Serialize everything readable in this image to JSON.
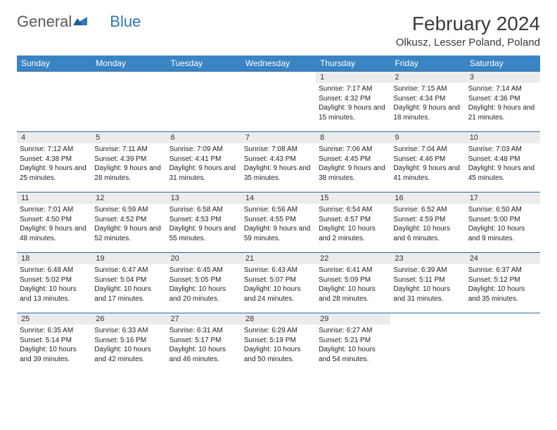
{
  "brand": {
    "part1": "General",
    "part2": "Blue"
  },
  "title": "February 2024",
  "location": "Olkusz, Lesser Poland, Poland",
  "colors": {
    "header_bg": "#3b84c4",
    "header_text": "#ffffff",
    "daynum_bg": "#ececec",
    "rule": "#2f6aa0",
    "logo_gray": "#5a5a5a",
    "logo_blue": "#2f77b8"
  },
  "day_labels": [
    "Sunday",
    "Monday",
    "Tuesday",
    "Wednesday",
    "Thursday",
    "Friday",
    "Saturday"
  ],
  "weeks": [
    [
      null,
      null,
      null,
      null,
      {
        "n": "1",
        "sr": "7:17 AM",
        "ss": "4:32 PM",
        "dl": "9 hours and 15 minutes."
      },
      {
        "n": "2",
        "sr": "7:15 AM",
        "ss": "4:34 PM",
        "dl": "9 hours and 18 minutes."
      },
      {
        "n": "3",
        "sr": "7:14 AM",
        "ss": "4:36 PM",
        "dl": "9 hours and 21 minutes."
      }
    ],
    [
      {
        "n": "4",
        "sr": "7:12 AM",
        "ss": "4:38 PM",
        "dl": "9 hours and 25 minutes."
      },
      {
        "n": "5",
        "sr": "7:11 AM",
        "ss": "4:39 PM",
        "dl": "9 hours and 28 minutes."
      },
      {
        "n": "6",
        "sr": "7:09 AM",
        "ss": "4:41 PM",
        "dl": "9 hours and 31 minutes."
      },
      {
        "n": "7",
        "sr": "7:08 AM",
        "ss": "4:43 PM",
        "dl": "9 hours and 35 minutes."
      },
      {
        "n": "8",
        "sr": "7:06 AM",
        "ss": "4:45 PM",
        "dl": "9 hours and 38 minutes."
      },
      {
        "n": "9",
        "sr": "7:04 AM",
        "ss": "4:46 PM",
        "dl": "9 hours and 41 minutes."
      },
      {
        "n": "10",
        "sr": "7:03 AM",
        "ss": "4:48 PM",
        "dl": "9 hours and 45 minutes."
      }
    ],
    [
      {
        "n": "11",
        "sr": "7:01 AM",
        "ss": "4:50 PM",
        "dl": "9 hours and 48 minutes."
      },
      {
        "n": "12",
        "sr": "6:59 AM",
        "ss": "4:52 PM",
        "dl": "9 hours and 52 minutes."
      },
      {
        "n": "13",
        "sr": "6:58 AM",
        "ss": "4:53 PM",
        "dl": "9 hours and 55 minutes."
      },
      {
        "n": "14",
        "sr": "6:56 AM",
        "ss": "4:55 PM",
        "dl": "9 hours and 59 minutes."
      },
      {
        "n": "15",
        "sr": "6:54 AM",
        "ss": "4:57 PM",
        "dl": "10 hours and 2 minutes."
      },
      {
        "n": "16",
        "sr": "6:52 AM",
        "ss": "4:59 PM",
        "dl": "10 hours and 6 minutes."
      },
      {
        "n": "17",
        "sr": "6:50 AM",
        "ss": "5:00 PM",
        "dl": "10 hours and 9 minutes."
      }
    ],
    [
      {
        "n": "18",
        "sr": "6:48 AM",
        "ss": "5:02 PM",
        "dl": "10 hours and 13 minutes."
      },
      {
        "n": "19",
        "sr": "6:47 AM",
        "ss": "5:04 PM",
        "dl": "10 hours and 17 minutes."
      },
      {
        "n": "20",
        "sr": "6:45 AM",
        "ss": "5:05 PM",
        "dl": "10 hours and 20 minutes."
      },
      {
        "n": "21",
        "sr": "6:43 AM",
        "ss": "5:07 PM",
        "dl": "10 hours and 24 minutes."
      },
      {
        "n": "22",
        "sr": "6:41 AM",
        "ss": "5:09 PM",
        "dl": "10 hours and 28 minutes."
      },
      {
        "n": "23",
        "sr": "6:39 AM",
        "ss": "5:11 PM",
        "dl": "10 hours and 31 minutes."
      },
      {
        "n": "24",
        "sr": "6:37 AM",
        "ss": "5:12 PM",
        "dl": "10 hours and 35 minutes."
      }
    ],
    [
      {
        "n": "25",
        "sr": "6:35 AM",
        "ss": "5:14 PM",
        "dl": "10 hours and 39 minutes."
      },
      {
        "n": "26",
        "sr": "6:33 AM",
        "ss": "5:16 PM",
        "dl": "10 hours and 42 minutes."
      },
      {
        "n": "27",
        "sr": "6:31 AM",
        "ss": "5:17 PM",
        "dl": "10 hours and 46 minutes."
      },
      {
        "n": "28",
        "sr": "6:29 AM",
        "ss": "5:19 PM",
        "dl": "10 hours and 50 minutes."
      },
      {
        "n": "29",
        "sr": "6:27 AM",
        "ss": "5:21 PM",
        "dl": "10 hours and 54 minutes."
      },
      null,
      null
    ]
  ],
  "labels": {
    "sunrise": "Sunrise:",
    "sunset": "Sunset:",
    "daylight": "Daylight:"
  }
}
